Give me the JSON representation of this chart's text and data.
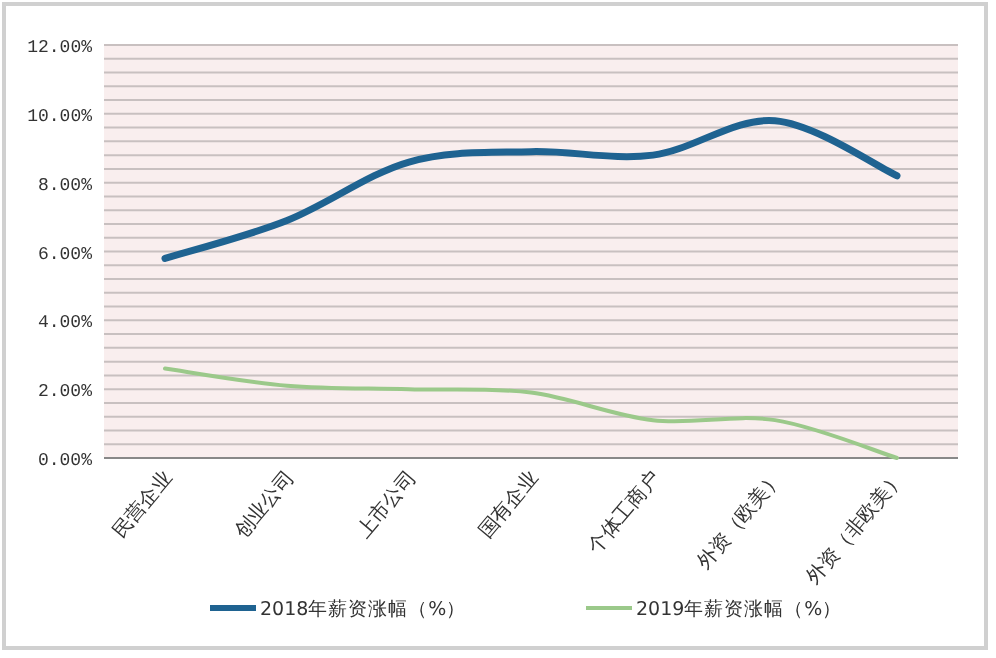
{
  "chart_data": {
    "type": "line",
    "categories": [
      "民营企业",
      "创业公司",
      "上市公司",
      "国有企业",
      "个体工商户",
      "外资（欧美）",
      "外资（非欧美）"
    ],
    "series": [
      {
        "name": "2018年薪资涨幅（%）",
        "color": "#1f6391",
        "values": [
          5.8,
          6.9,
          8.6,
          8.9,
          8.8,
          9.8,
          8.2
        ]
      },
      {
        "name": "2019年薪资涨幅（%）",
        "color": "#9bc98a",
        "values": [
          2.6,
          2.1,
          2.0,
          1.9,
          1.1,
          1.1,
          0.0
        ]
      }
    ],
    "ylim": [
      0,
      12
    ],
    "yticks": [
      {
        "value": 0,
        "label": "0.00%"
      },
      {
        "value": 0.4,
        "label": null
      },
      {
        "value": 0.8,
        "label": null
      },
      {
        "value": 1.2,
        "label": null
      },
      {
        "value": 1.6,
        "label": null
      },
      {
        "value": 2,
        "label": "2.00%"
      },
      {
        "value": 2.4,
        "label": null
      },
      {
        "value": 2.8,
        "label": null
      },
      {
        "value": 3.2,
        "label": null
      },
      {
        "value": 3.6,
        "label": null
      },
      {
        "value": 4,
        "label": "4.00%"
      },
      {
        "value": 4.4,
        "label": null
      },
      {
        "value": 4.8,
        "label": null
      },
      {
        "value": 5.2,
        "label": null
      },
      {
        "value": 5.6,
        "label": null
      },
      {
        "value": 6,
        "label": "6.00%"
      },
      {
        "value": 6.4,
        "label": null
      },
      {
        "value": 6.8,
        "label": null
      },
      {
        "value": 7.2,
        "label": null
      },
      {
        "value": 7.6,
        "label": null
      },
      {
        "value": 8,
        "label": "8.00%"
      },
      {
        "value": 8.4,
        "label": null
      },
      {
        "value": 8.8,
        "label": null
      },
      {
        "value": 9.2,
        "label": null
      },
      {
        "value": 9.6,
        "label": null
      },
      {
        "value": 10,
        "label": "10.00%"
      },
      {
        "value": 10.4,
        "label": null
      },
      {
        "value": 10.8,
        "label": null
      },
      {
        "value": 11.2,
        "label": null
      },
      {
        "value": 11.6,
        "label": null
      },
      {
        "value": 12,
        "label": "12.00%"
      }
    ],
    "grid": "y",
    "legend": "bottom",
    "marker": "none",
    "line_style": "solid"
  }
}
